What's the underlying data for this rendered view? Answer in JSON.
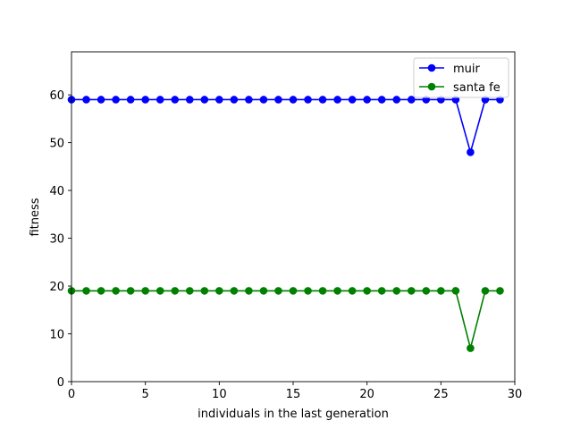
{
  "chart_data": {
    "type": "line",
    "title": "",
    "xlabel": "individuals in the last generation",
    "ylabel": "fitness",
    "xlim": [
      0,
      30
    ],
    "ylim": [
      0,
      69
    ],
    "xticks": [
      0,
      5,
      10,
      15,
      20,
      25,
      30
    ],
    "yticks": [
      0,
      10,
      20,
      30,
      40,
      50,
      60
    ],
    "grid": false,
    "legend_position": "top-right",
    "x": [
      0,
      1,
      2,
      3,
      4,
      5,
      6,
      7,
      8,
      9,
      10,
      11,
      12,
      13,
      14,
      15,
      16,
      17,
      18,
      19,
      20,
      21,
      22,
      23,
      24,
      25,
      26,
      27,
      28,
      29
    ],
    "series": [
      {
        "name": "muir",
        "color": "#0000ff",
        "marker": "circle",
        "values": [
          59,
          59,
          59,
          59,
          59,
          59,
          59,
          59,
          59,
          59,
          59,
          59,
          59,
          59,
          59,
          59,
          59,
          59,
          59,
          59,
          59,
          59,
          59,
          59,
          59,
          59,
          59,
          48,
          59,
          59
        ]
      },
      {
        "name": "santa fe",
        "color": "#008000",
        "marker": "circle",
        "values": [
          19,
          19,
          19,
          19,
          19,
          19,
          19,
          19,
          19,
          19,
          19,
          19,
          19,
          19,
          19,
          19,
          19,
          19,
          19,
          19,
          19,
          19,
          19,
          19,
          19,
          19,
          19,
          7,
          19,
          19
        ]
      }
    ]
  }
}
